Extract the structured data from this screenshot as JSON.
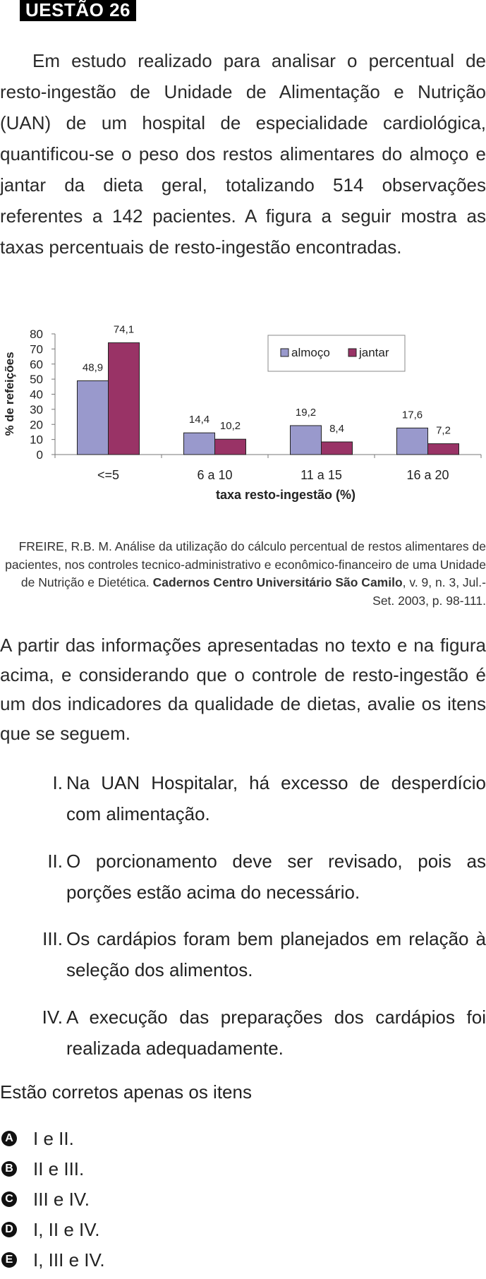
{
  "header": {
    "title": "UESTÃO 26"
  },
  "intro": "Em estudo realizado para analisar o percentual de resto-ingestão de Unidade de Alimentação e Nutrição (UAN) de um hospital de especialidade cardiológica, quantificou-se o peso dos restos alimentares do almoço e jantar da dieta geral, totalizando 514 observações referentes a 142 pacientes. A figura a seguir mostra as taxas percentuais de resto-ingestão encontradas.",
  "chart_data": {
    "type": "bar",
    "categories": [
      "<=5",
      "6 a 10",
      "11 a 15",
      "16 a 20"
    ],
    "series": [
      {
        "name": "almoço",
        "values": [
          48.9,
          14.4,
          19.2,
          17.6
        ],
        "labels": [
          "48,9",
          "14,4",
          "19,2",
          "17,6"
        ],
        "color": "#9999cc"
      },
      {
        "name": "jantar",
        "values": [
          74.1,
          10.2,
          8.4,
          7.2
        ],
        "labels": [
          "74,1",
          "10,2",
          "8,4",
          "7,2"
        ],
        "color": "#993366"
      }
    ],
    "xlabel": "taxa resto-ingestão (%)",
    "ylabel": "% de refeições",
    "ylim": [
      0,
      80
    ],
    "yticks": [
      "0",
      "10",
      "20",
      "30",
      "40",
      "50",
      "60",
      "70",
      "80"
    ],
    "legend": "top-right",
    "grid": false
  },
  "citation": {
    "text": "FREIRE, R.B. M. Análise da utilização do cálculo percentual de restos alimentares de pacientes, nos controles tecnico-administrativo e econômico-financeiro de uma Unidade de Nutrição e Dietética.",
    "journal": "Cadernos Centro Universitário São Camilo",
    "details": ", v. 9, n. 3, Jul.-Set. 2003, p. 98-111."
  },
  "context": "A partir das informações apresentadas no texto e na figura acima, e considerando que o controle de resto-ingestão é um dos indicadores da qualidade de dietas, avalie os itens que se seguem.",
  "items": [
    {
      "num": "I.",
      "text": "Na UAN Hospitalar, há excesso de desperdício com alimentação."
    },
    {
      "num": "II.",
      "text": "O porcionamento deve ser revisado, pois as porções estão acima do necessário."
    },
    {
      "num": "III.",
      "text": "Os cardápios foram bem planejados em relação à seleção dos alimentos."
    },
    {
      "num": "IV.",
      "text": "A execução das preparações dos cardápios foi realizada adequadamente."
    }
  ],
  "stem": "Estão corretos apenas os itens",
  "options": [
    {
      "letter": "A",
      "text": "I e II."
    },
    {
      "letter": "B",
      "text": "II e III."
    },
    {
      "letter": "C",
      "text": "III e IV."
    },
    {
      "letter": "D",
      "text": "I, II e IV."
    },
    {
      "letter": "E",
      "text": "I, III e IV."
    }
  ]
}
